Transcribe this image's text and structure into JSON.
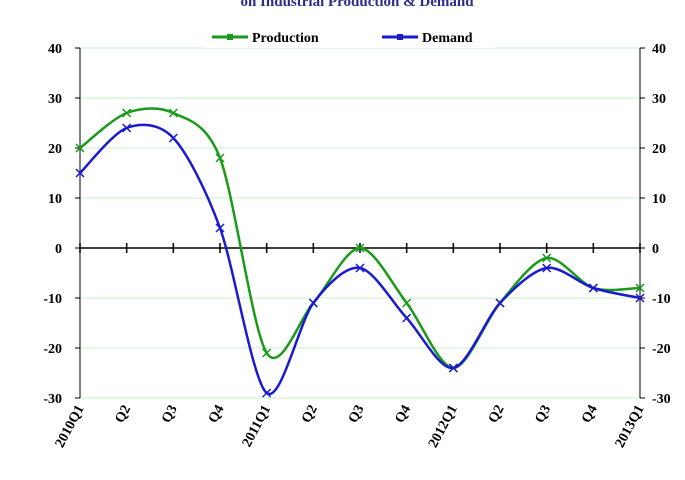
{
  "chart_data": {
    "type": "line",
    "title": "on Industrial Production & Demand",
    "categories": [
      "2010Q1",
      "Q2",
      "Q3",
      "Q4",
      "2011Q1",
      "Q2",
      "Q3",
      "Q4",
      "2012Q1",
      "Q2",
      "Q3",
      "Q4",
      "2013Q1"
    ],
    "series": [
      {
        "name": "Production",
        "color": "#1a9a1a",
        "values": [
          20,
          27,
          27,
          18,
          -21,
          -11,
          0,
          -11,
          -24,
          -11,
          -2,
          -8,
          -8
        ]
      },
      {
        "name": "Demand",
        "color": "#1a1ad0",
        "values": [
          15,
          24,
          22,
          4,
          -29,
          -11,
          -4,
          -14,
          -24,
          -11,
          -4,
          -8,
          -10
        ]
      }
    ],
    "ylim": [
      -30,
      40
    ],
    "yticks": [
      -30,
      -20,
      -10,
      0,
      10,
      20,
      30,
      40
    ],
    "gridlines": true,
    "grid_color": "#c8eec8",
    "legend_position": "top"
  }
}
